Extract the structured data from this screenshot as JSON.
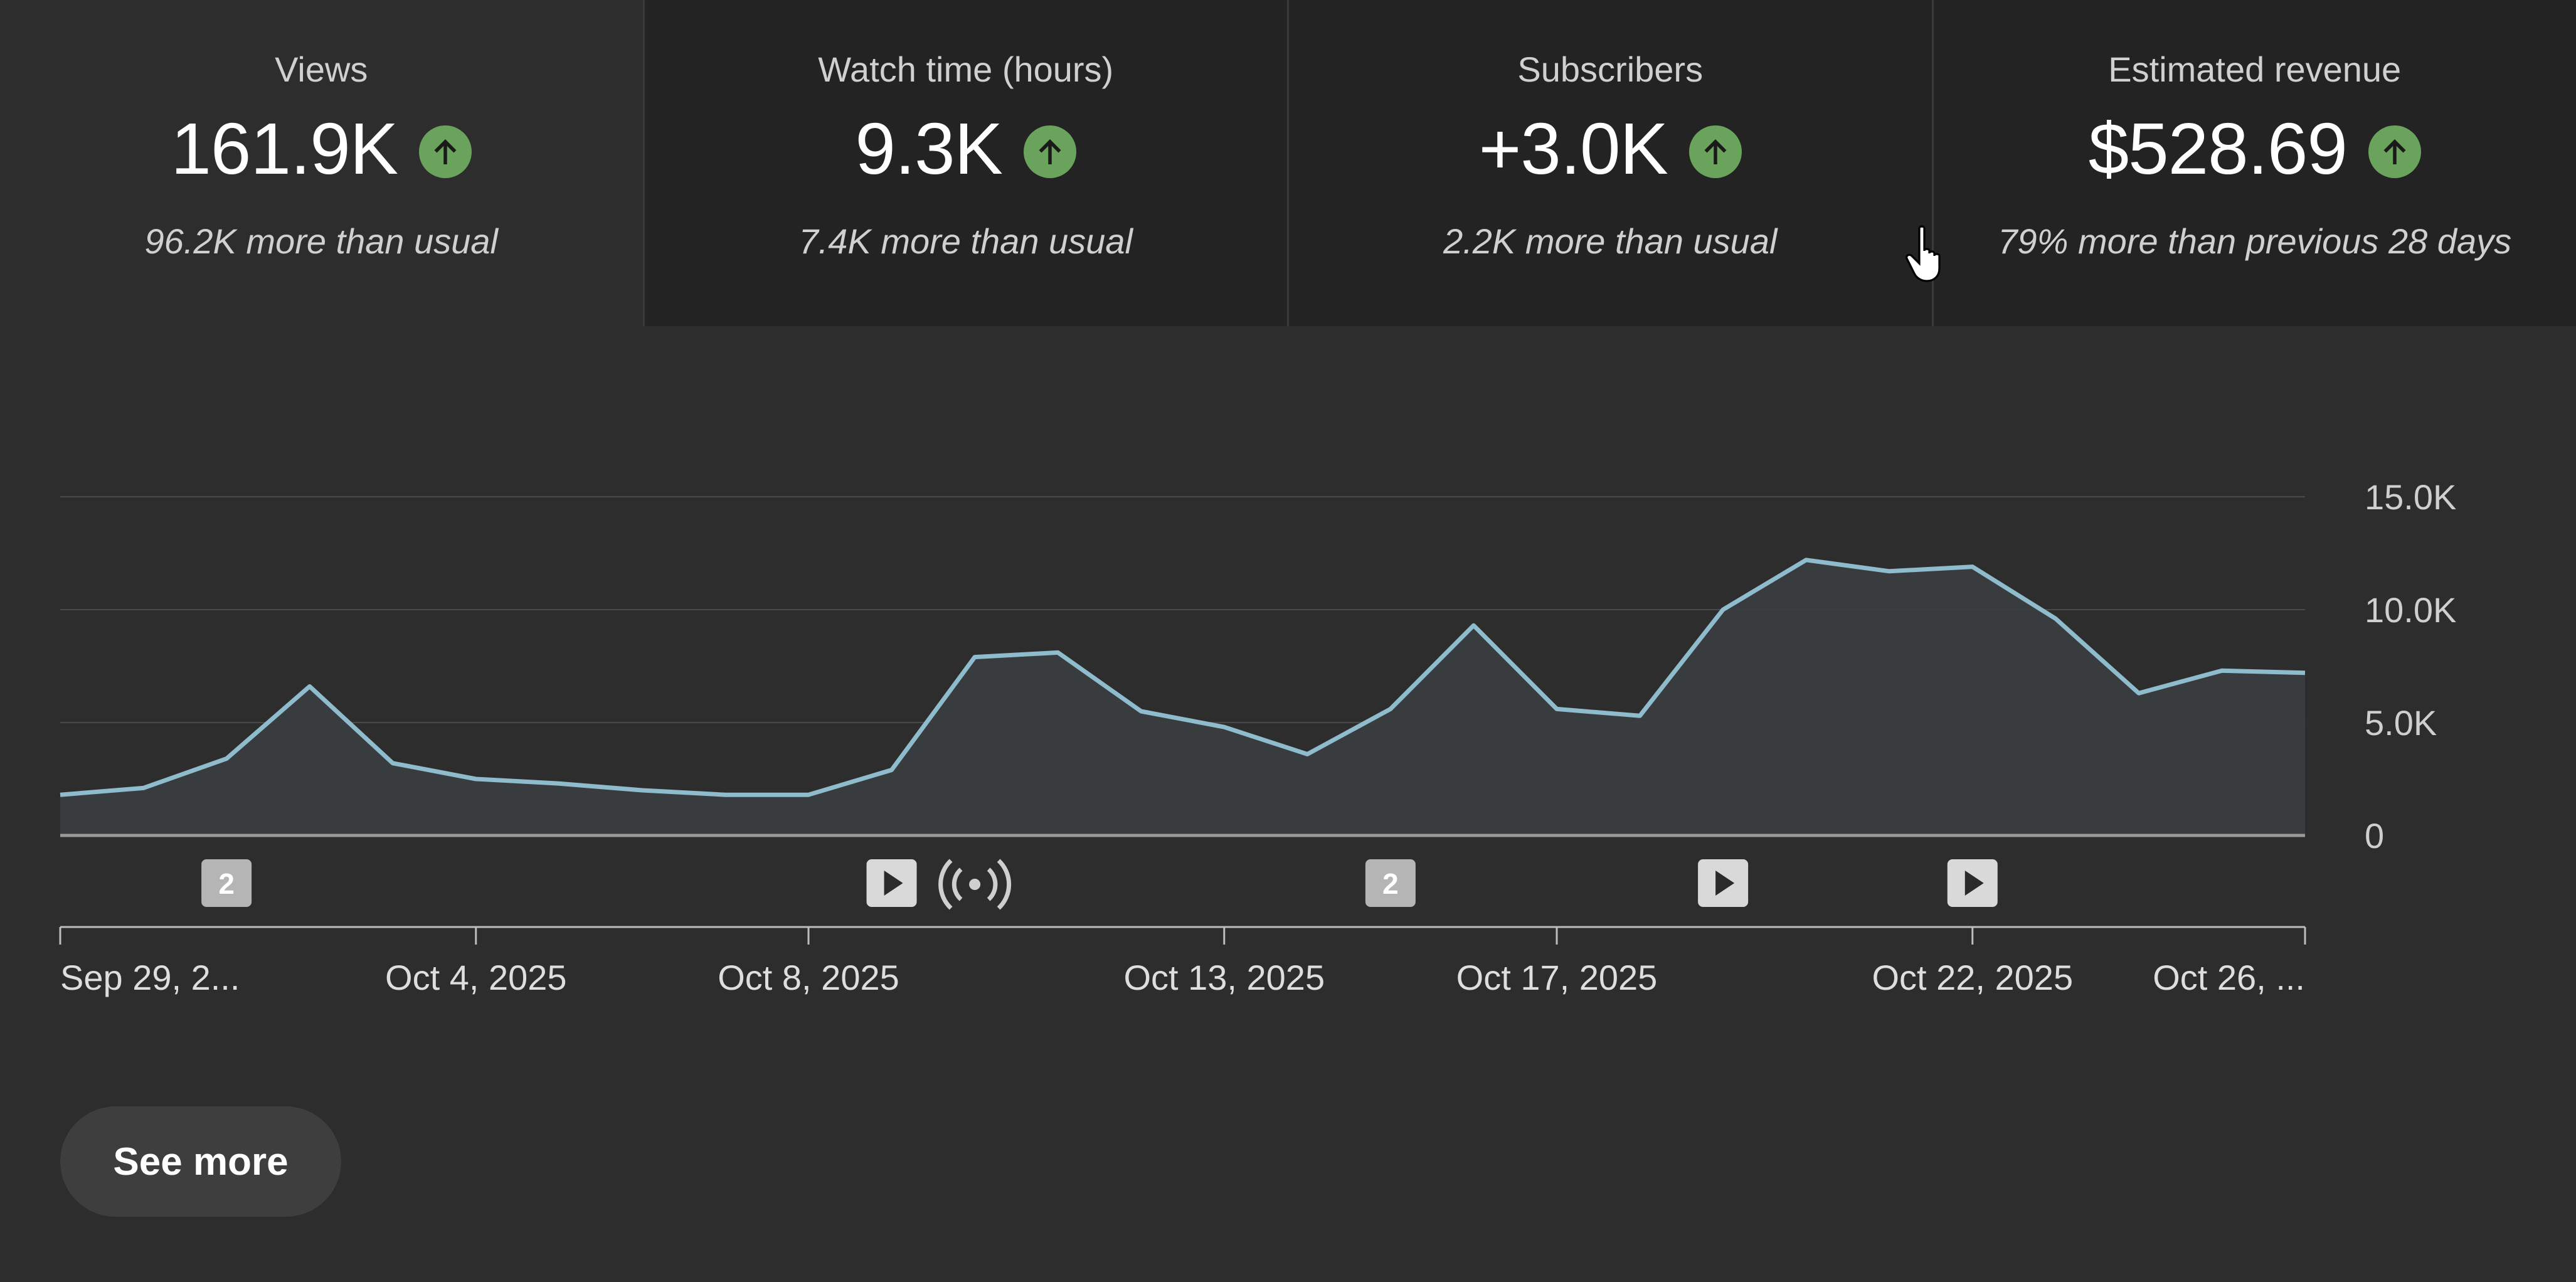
{
  "stats": [
    {
      "label": "Views",
      "value": "161.9K",
      "note": "96.2K more than usual"
    },
    {
      "label": "Watch time (hours)",
      "value": "9.3K",
      "note": "7.4K more than usual"
    },
    {
      "label": "Subscribers",
      "value": "+3.0K",
      "note": "2.2K more than usual"
    },
    {
      "label": "Estimated revenue",
      "value": "$528.69",
      "note": "79% more than previous 28 days"
    }
  ],
  "see_more_label": "See more",
  "colors": {
    "background": "#2d2d2d",
    "card_background": "#232323",
    "line": "#8fbccc",
    "area": "#3a3d40",
    "up_badge": "#6aa35b"
  },
  "chart_data": {
    "type": "area",
    "x": [
      "Sep 29, 2025",
      "Sep 30, 2025",
      "Oct 1, 2025",
      "Oct 2, 2025",
      "Oct 3, 2025",
      "Oct 4, 2025",
      "Oct 5, 2025",
      "Oct 6, 2025",
      "Oct 7, 2025",
      "Oct 8, 2025",
      "Oct 9, 2025",
      "Oct 10, 2025",
      "Oct 11, 2025",
      "Oct 12, 2025",
      "Oct 13, 2025",
      "Oct 14, 2025",
      "Oct 15, 2025",
      "Oct 16, 2025",
      "Oct 17, 2025",
      "Oct 18, 2025",
      "Oct 19, 2025",
      "Oct 20, 2025",
      "Oct 21, 2025",
      "Oct 22, 2025",
      "Oct 23, 2025",
      "Oct 24, 2025",
      "Oct 25, 2025",
      "Oct 26, 2025"
    ],
    "series": [
      {
        "values": [
          1800,
          2100,
          3400,
          6600,
          3200,
          2500,
          2300,
          2000,
          1800,
          1800,
          2900,
          7900,
          8100,
          5500,
          4800,
          3600,
          5600,
          9300,
          5600,
          5300,
          10000,
          12200,
          11700,
          11900,
          9600,
          6300,
          7300,
          7200
        ]
      }
    ],
    "ylim": [
      0,
      15000
    ],
    "y_ticks": [
      "15.0K",
      "10.0K",
      "5.0K",
      "0"
    ],
    "y_tick_values": [
      15000,
      10000,
      5000,
      0
    ],
    "x_tick_labels": [
      {
        "label": "Sep 29, 2...",
        "index": 0
      },
      {
        "label": "Oct 4, 2025",
        "index": 5
      },
      {
        "label": "Oct 8, 2025",
        "index": 9
      },
      {
        "label": "Oct 13, 2025",
        "index": 14
      },
      {
        "label": "Oct 17, 2025",
        "index": 18
      },
      {
        "label": "Oct 22, 2025",
        "index": 23
      },
      {
        "label": "Oct 26, ...",
        "index": 27
      }
    ],
    "markers": [
      {
        "type": "count",
        "label": "2",
        "index": 2
      },
      {
        "type": "video",
        "label": "",
        "index": 10
      },
      {
        "type": "live",
        "label": "",
        "index": 11
      },
      {
        "type": "count",
        "label": "2",
        "index": 16
      },
      {
        "type": "video",
        "label": "",
        "index": 20
      },
      {
        "type": "video",
        "label": "",
        "index": 23
      }
    ],
    "grid": true,
    "legend": "none"
  }
}
